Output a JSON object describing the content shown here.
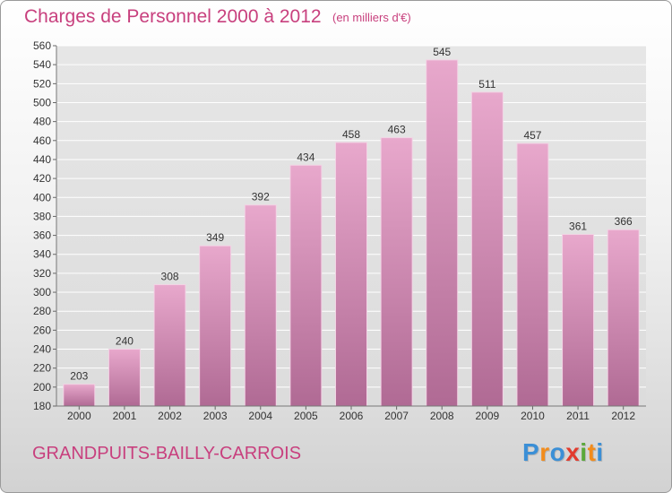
{
  "title": "Charges de Personnel 2000 à 2012",
  "subtitle": "(en milliers d'€)",
  "commune": "GRANDPUITS-BAILLY-CARROIS",
  "logo": {
    "text": "Proxiti",
    "letter_colors": [
      "#3b8fd6",
      "#f28c1c",
      "#3b8fd6",
      "#e23b2e",
      "#5aa83a",
      "#f28c1c",
      "#3b8fd6"
    ]
  },
  "colors": {
    "text_accent": "#c8407e",
    "bar_top": "#e8a8cc",
    "bar_bottom": "#b06a94",
    "grid": "#ffffff"
  },
  "chart_data": {
    "type": "bar",
    "title": "Charges de Personnel 2000 à 2012",
    "subtitle": "(en milliers d'€)",
    "categories": [
      "2000",
      "2001",
      "2002",
      "2003",
      "2004",
      "2005",
      "2006",
      "2007",
      "2008",
      "2009",
      "2010",
      "2011",
      "2012"
    ],
    "values": [
      203,
      240,
      308,
      349,
      392,
      434,
      458,
      463,
      545,
      511,
      457,
      361,
      366
    ],
    "ylim": [
      180,
      560
    ],
    "yticks": [
      180,
      200,
      220,
      240,
      260,
      280,
      300,
      320,
      340,
      360,
      380,
      400,
      420,
      440,
      460,
      480,
      500,
      520,
      540,
      560
    ],
    "grid": true,
    "xlabel": "",
    "ylabel": ""
  }
}
